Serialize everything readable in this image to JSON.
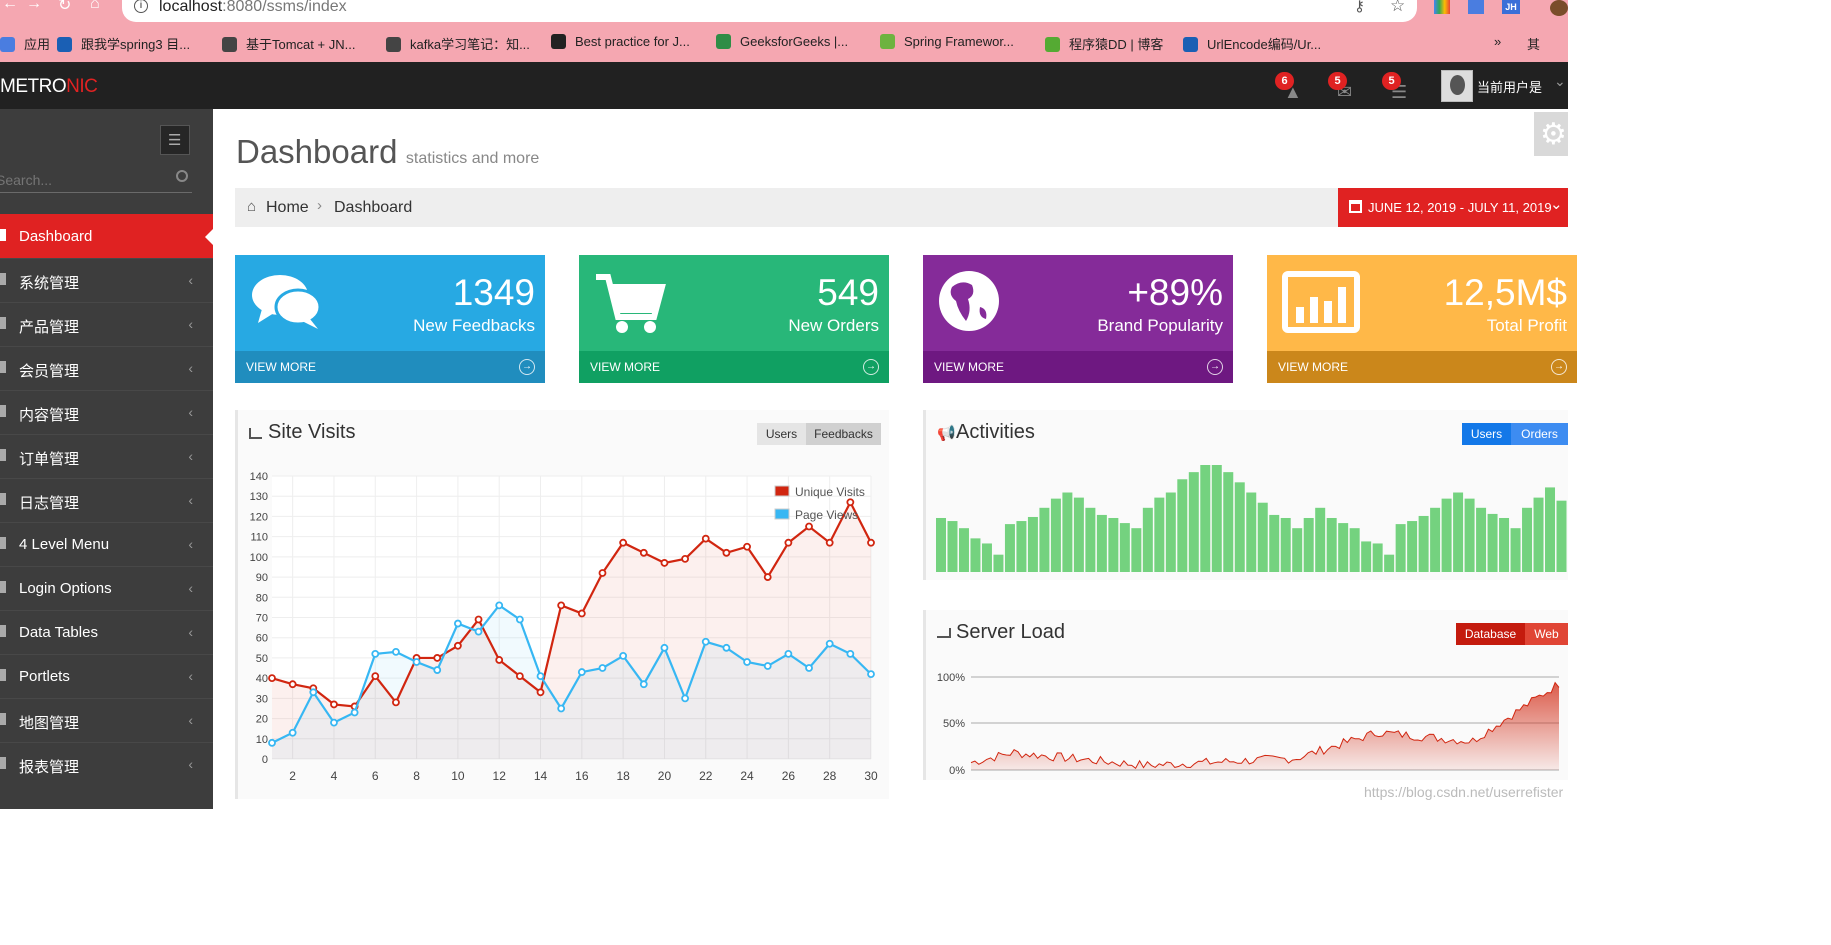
{
  "browser": {
    "url_host": "localhost",
    "url_rest": ":8080/ssms/index",
    "bookmarks": [
      "应用",
      "跟我学spring3 目...",
      "基于Tomcat + JN...",
      "kafka学习笔记：知...",
      "Best practice for J...",
      "GeeksforGeeks |...",
      "Spring Framewor...",
      "程序猿DD | 博客",
      "UrlEncode编码/Ur...",
      "»",
      "其"
    ],
    "ext_label": "JH"
  },
  "brand": {
    "a": "METRO",
    "b": "NIC"
  },
  "topnav": {
    "notifications": "6",
    "inbox": "5",
    "tasks": "5",
    "user": "当前用户是"
  },
  "sidebar": {
    "search_placeholder": "Search...",
    "items": [
      {
        "label": "Dashboard",
        "active": true
      },
      {
        "label": "系统管理"
      },
      {
        "label": "产品管理"
      },
      {
        "label": "会员管理"
      },
      {
        "label": "内容管理"
      },
      {
        "label": "订单管理"
      },
      {
        "label": "日志管理"
      },
      {
        "label": "4 Level Menu"
      },
      {
        "label": "Login Options"
      },
      {
        "label": "Data Tables"
      },
      {
        "label": "Portlets"
      },
      {
        "label": "地图管理"
      },
      {
        "label": "报表管理"
      }
    ]
  },
  "page": {
    "title": "Dashboard",
    "subtitle": "statistics and more"
  },
  "breadcrumb": {
    "home": "Home",
    "current": "Dashboard",
    "daterange": "JUNE 12, 2019 - JULY 11, 2019"
  },
  "stats": [
    {
      "number": "1349",
      "label": "New Feedbacks",
      "more": "VIEW MORE",
      "color": "#27a9e3",
      "dark": "#208dbe",
      "icon": "comments-icon"
    },
    {
      "number": "549",
      "label": "New Orders",
      "more": "VIEW MORE",
      "color": "#28b779",
      "dark": "#10a062",
      "icon": "cart-icon"
    },
    {
      "number": "+89%",
      "label": "Brand Popularity",
      "more": "VIEW MORE",
      "color": "#852b99",
      "dark": "#6e1881",
      "icon": "globe-icon"
    },
    {
      "number": "12,5M$",
      "label": "Total Profit",
      "more": "VIEW MORE",
      "color": "#ffb848",
      "dark": "#cb871b",
      "icon": "bar-chart-icon"
    }
  ],
  "site_visits": {
    "title": "Site Visits",
    "tabs": [
      "Users",
      "Feedbacks"
    ]
  },
  "activities": {
    "title": "Activities",
    "tabs": [
      "Users",
      "Orders"
    ]
  },
  "server_load": {
    "title": "Server Load",
    "tabs": [
      "Database",
      "Web"
    ]
  },
  "watermark": "https://blog.csdn.net/userrefister",
  "chart_data": [
    {
      "type": "line",
      "title": "Site Visits",
      "ylim": [
        0,
        140
      ],
      "y_ticks": [
        0,
        10,
        20,
        30,
        40,
        50,
        60,
        70,
        80,
        90,
        100,
        110,
        120,
        130,
        140
      ],
      "x_ticks": [
        2,
        4,
        6,
        8,
        10,
        12,
        14,
        16,
        18,
        20,
        22,
        24,
        26,
        28,
        30
      ],
      "x": [
        1,
        2,
        3,
        4,
        5,
        6,
        7,
        8,
        9,
        10,
        11,
        12,
        13,
        14,
        15,
        16,
        17,
        18,
        19,
        20,
        21,
        22,
        23,
        24,
        25,
        26,
        27,
        28,
        29,
        30
      ],
      "series": [
        {
          "name": "Unique Visits",
          "color": "#d12610",
          "values": [
            40,
            37,
            35,
            27,
            26,
            41,
            28,
            50,
            50,
            56,
            69,
            49,
            41,
            33,
            76,
            72,
            92,
            107,
            102,
            97,
            99,
            109,
            102,
            105,
            90,
            107,
            115,
            107,
            127,
            107
          ]
        },
        {
          "name": "Page Views",
          "color": "#37b7f3",
          "values": [
            8,
            13,
            33,
            18,
            23,
            52,
            53,
            48,
            44,
            67,
            63,
            76,
            69,
            41,
            25,
            43,
            45,
            51,
            37,
            55,
            30,
            58,
            55,
            48,
            46,
            52,
            45,
            57,
            52,
            42
          ]
        }
      ]
    },
    {
      "type": "bar",
      "title": "Activities",
      "color": "#74d27f",
      "values": [
        53,
        50,
        43,
        33,
        28,
        17,
        47,
        50,
        54,
        63,
        72,
        78,
        73,
        63,
        56,
        53,
        48,
        43,
        63,
        73,
        78,
        91,
        98,
        105,
        105,
        98,
        88,
        78,
        68,
        56,
        53,
        43,
        53,
        63,
        53,
        48,
        43,
        30,
        28,
        17,
        47,
        50,
        55,
        63,
        72,
        78,
        72,
        63,
        57,
        53,
        43,
        63,
        73,
        83,
        70
      ]
    },
    {
      "type": "area",
      "title": "Server Load",
      "color": "#d12610",
      "y_ticks": [
        "100%",
        "50%",
        "0%"
      ],
      "ylim": [
        0,
        100
      ]
    }
  ]
}
